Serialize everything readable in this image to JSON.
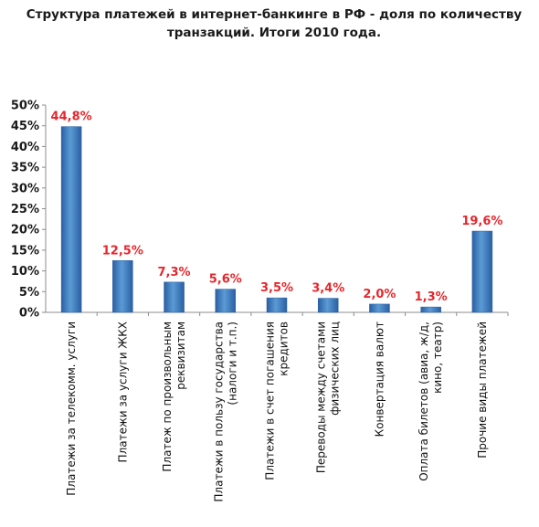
{
  "chart_data": {
    "type": "bar",
    "title_lines": [
      "Структура платежей в интернет-банкинге в РФ - доля по количеству",
      "транзакций. Итоги 2010 года."
    ],
    "categories": [
      [
        "Платежи за телекомм. услуги"
      ],
      [
        "Платежи за услуги ЖКХ"
      ],
      [
        "Платеж по произвольным",
        "реквизитам"
      ],
      [
        "Платежи в пользу государства",
        "(налоги и т.п.)"
      ],
      [
        "Платежи в счет погашения",
        "кредитов"
      ],
      [
        "Переводы между счетами",
        "физических лиц"
      ],
      [
        "Конвертация валют"
      ],
      [
        "Оплата билетов (авиа, ж/д,",
        "кино, театр)"
      ],
      [
        "Прочие виды платежей"
      ]
    ],
    "values": [
      44.8,
      12.5,
      7.3,
      5.6,
      3.5,
      3.4,
      2.0,
      1.3,
      19.6
    ],
    "data_labels": [
      "44,8%",
      "12,5%",
      "7,3%",
      "5,6%",
      "3,5%",
      "3,4%",
      "2,0%",
      "1,3%",
      "19,6%"
    ],
    "yticks": [
      "0%",
      "5%",
      "10%",
      "15%",
      "20%",
      "25%",
      "30%",
      "35%",
      "40%",
      "45%",
      "50%"
    ],
    "ylim": [
      0,
      50
    ],
    "grid": false,
    "legend": "none",
    "colors": {
      "bar_light": "#5b9bd5",
      "bar_dark": "#2a5fa3",
      "label": "#e8262b"
    }
  }
}
